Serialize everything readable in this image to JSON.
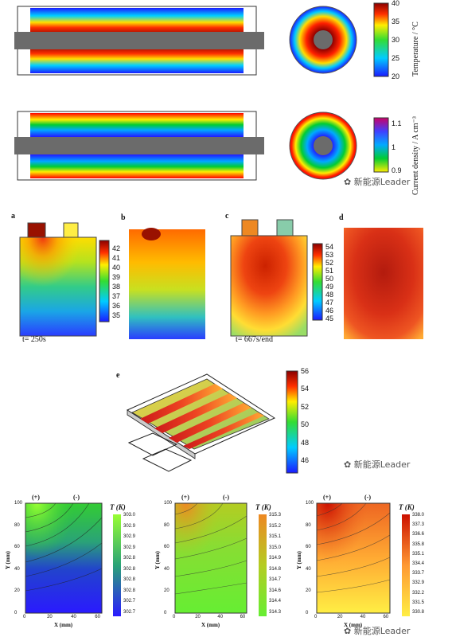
{
  "top_row": {
    "temp_bar": {
      "ticks": [
        "40",
        "35",
        "30",
        "25",
        "20"
      ],
      "label": "Temperature / °C"
    },
    "current_bar": {
      "ticks": [
        "1.1",
        "1",
        "0.9"
      ],
      "label": "Current density / A cm⁻³"
    },
    "watermark": "新能源Leader"
  },
  "middle_row": {
    "panels": [
      {
        "letter": "a",
        "caption": "t= 250s"
      },
      {
        "letter": "b",
        "caption": ""
      },
      {
        "letter": "c",
        "caption": "t= 667s/end"
      },
      {
        "letter": "d",
        "caption": ""
      }
    ],
    "bar1_ticks": [
      "42",
      "41",
      "40",
      "39",
      "38",
      "37",
      "36",
      "35"
    ],
    "bar2_ticks": [
      "54",
      "53",
      "52",
      "51",
      "50",
      "49",
      "48",
      "47",
      "46",
      "45"
    ]
  },
  "e_panel": {
    "letter": "e",
    "bar_ticks": [
      "56",
      "54",
      "52",
      "50",
      "48",
      "46"
    ],
    "watermark": "新能源Leader"
  },
  "bottom_row": {
    "plots": [
      {
        "plus": "(+)",
        "minus": "(-)",
        "unit": "T (K)",
        "ticks": [
          "303.0",
          "302.9",
          "302.9",
          "302.9",
          "302.8",
          "302.8",
          "302.8",
          "302.8",
          "302.7",
          "302.7"
        ]
      },
      {
        "plus": "(+)",
        "minus": "(-)",
        "unit": "T (K)",
        "ticks": [
          "315.3",
          "315.2",
          "315.1",
          "315.0",
          "314.9",
          "314.8",
          "314.7",
          "314.6",
          "314.4",
          "314.3"
        ]
      },
      {
        "plus": "(+)",
        "minus": "(-)",
        "unit": "T (K)",
        "ticks": [
          "338.0",
          "337.3",
          "336.6",
          "335.8",
          "335.1",
          "334.4",
          "333.7",
          "332.9",
          "332.2",
          "331.5",
          "330.8"
        ]
      }
    ],
    "yticks": [
      "100",
      "80",
      "60",
      "40",
      "20",
      "0"
    ],
    "xticks": [
      "0",
      "20",
      "40",
      "60"
    ],
    "ylabel": "Y (mm)",
    "xlabel": "X (mm)",
    "watermark": "新能源Leader"
  }
}
